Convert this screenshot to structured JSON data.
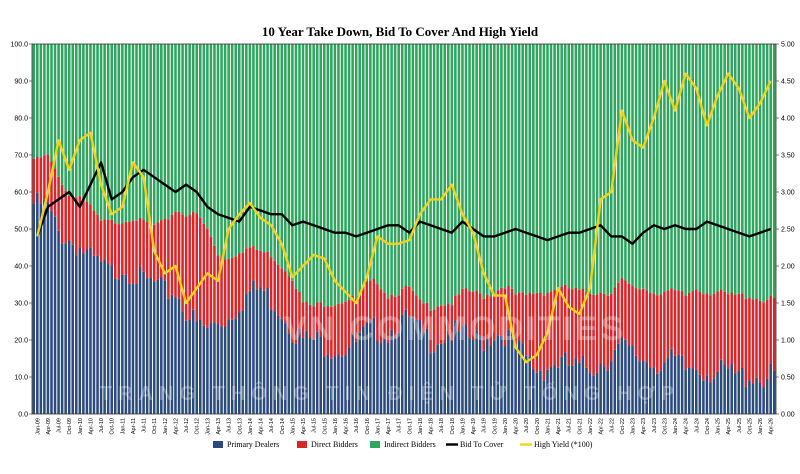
{
  "chart_data": {
    "type": "bar",
    "stacked": true,
    "title": "10 Year Take Down, Bid To Cover And High Yield",
    "ylim": [
      0,
      100
    ],
    "y2lim": [
      0,
      5
    ],
    "yticks": [
      "0.0",
      "10.0",
      "20.0",
      "30.0",
      "40.0",
      "50.0",
      "60.0",
      "70.0",
      "80.0",
      "90.0",
      "100.0"
    ],
    "y2ticks": [
      "0.00",
      "0.50",
      "1.00",
      "1.50",
      "2.00",
      "2.50",
      "3.00",
      "3.50",
      "4.00",
      "4.50",
      "5.00"
    ],
    "categories": [
      "Jan-09",
      "Apr-09",
      "Jul-09",
      "Oct-09",
      "Jan-10",
      "Apr-10",
      "Jul-10",
      "Oct-10",
      "Jan-11",
      "Apr-11",
      "Jul-11",
      "Oct-11",
      "Jan-12",
      "Apr-12",
      "Jul-12",
      "Oct-12",
      "Jan-13",
      "Apr-13",
      "Jul-13",
      "Oct-13",
      "Jan-14",
      "Apr-14",
      "Jul-14",
      "Oct-14",
      "Jan-15",
      "Apr-15",
      "Jul-15",
      "Oct-15",
      "Jan-16",
      "Apr-16",
      "Jul-16",
      "Oct-16",
      "Jan-17",
      "Apr-17",
      "Jul-17",
      "Oct-17",
      "Jan-18",
      "Apr-18",
      "Jul-18",
      "Oct-18",
      "Jan-19",
      "Apr-19",
      "Jul-19",
      "Oct-19",
      "Jan-20",
      "Apr-20",
      "Jul-20",
      "Oct-20",
      "Jan-21",
      "Apr-21",
      "Jul-21",
      "Oct-21",
      "Jan-22",
      "Apr-22",
      "Jul-22",
      "Oct-22",
      "Jan-23",
      "Apr-23",
      "Jul-23",
      "Oct-23",
      "Jan-24",
      "Apr-24",
      "Jul-24",
      "Oct-24",
      "Jan-25",
      "Apr-25",
      "Jul-25",
      "Oct-25",
      "Jan-26",
      "Apr-26"
    ],
    "bars_per_category": 3,
    "series": [
      {
        "name": "Primary Dealers",
        "kind": "bar",
        "axis": "left",
        "color": "#2b4b7c",
        "values": [
          57,
          56,
          49,
          47,
          45,
          42,
          40,
          38,
          40,
          38,
          36,
          35,
          33,
          33,
          28,
          24,
          23,
          25,
          26,
          30,
          33,
          34,
          31,
          28,
          23,
          20,
          20,
          19,
          18,
          18,
          19,
          22,
          23,
          22,
          25,
          25,
          22,
          20,
          21,
          22,
          21,
          20,
          20,
          22,
          22,
          18,
          15,
          12,
          13,
          14,
          13,
          12,
          13,
          14,
          16,
          18,
          16,
          15,
          14,
          14,
          14,
          12,
          13,
          12,
          11,
          11,
          10,
          11,
          10,
          10
        ]
      },
      {
        "name": "Direct Bidders",
        "kind": "bar",
        "axis": "left",
        "color": "#d9262b",
        "values": [
          12,
          14,
          15,
          12,
          14,
          14,
          12,
          14,
          12,
          15,
          16,
          16,
          19,
          22,
          26,
          30,
          27,
          18,
          16,
          14,
          12,
          10,
          12,
          12,
          14,
          10,
          9,
          11,
          12,
          13,
          12,
          13,
          13,
          10,
          8,
          9,
          8,
          9,
          9,
          8,
          12,
          13,
          12,
          11,
          13,
          14,
          17,
          21,
          20,
          20,
          21,
          21,
          20,
          19,
          17,
          18,
          18,
          19,
          19,
          19,
          19,
          20,
          21,
          21,
          22,
          21,
          22,
          21,
          21,
          21
        ]
      },
      {
        "name": "Indirect Bidders",
        "kind": "bar",
        "axis": "left",
        "color": "#2fa55f",
        "values": [
          31,
          30,
          36,
          41,
          41,
          44,
          48,
          48,
          48,
          47,
          48,
          49,
          48,
          45,
          46,
          46,
          50,
          57,
          58,
          56,
          55,
          56,
          57,
          60,
          63,
          70,
          71,
          70,
          70,
          69,
          69,
          65,
          64,
          68,
          67,
          66,
          70,
          71,
          70,
          70,
          67,
          67,
          68,
          67,
          65,
          68,
          68,
          67,
          67,
          66,
          66,
          67,
          67,
          67,
          67,
          64,
          66,
          66,
          67,
          67,
          67,
          68,
          66,
          67,
          67,
          68,
          68,
          68,
          69,
          69
        ]
      },
      {
        "name": "Bid To Cover",
        "kind": "line",
        "axis": "right",
        "color": "#000000",
        "values": [
          2.4,
          2.8,
          2.9,
          3.0,
          2.8,
          3.1,
          3.4,
          2.9,
          3.0,
          3.2,
          3.3,
          3.2,
          3.1,
          3.0,
          3.1,
          3.0,
          2.8,
          2.7,
          2.65,
          2.6,
          2.8,
          2.75,
          2.7,
          2.7,
          2.55,
          2.6,
          2.55,
          2.5,
          2.45,
          2.45,
          2.4,
          2.45,
          2.5,
          2.55,
          2.55,
          2.45,
          2.6,
          2.55,
          2.5,
          2.45,
          2.6,
          2.5,
          2.4,
          2.4,
          2.45,
          2.5,
          2.45,
          2.4,
          2.35,
          2.4,
          2.45,
          2.45,
          2.5,
          2.55,
          2.4,
          2.4,
          2.3,
          2.45,
          2.55,
          2.5,
          2.55,
          2.5,
          2.5,
          2.6,
          2.55,
          2.5,
          2.45,
          2.4,
          2.45,
          2.5
        ]
      },
      {
        "name": "High Yield (*100)",
        "kind": "line",
        "axis": "right",
        "color": "#f2d21a",
        "values": [
          2.4,
          3.0,
          3.7,
          3.3,
          3.7,
          3.8,
          3.1,
          2.7,
          2.8,
          3.4,
          3.2,
          2.2,
          1.9,
          2.0,
          1.5,
          1.7,
          1.9,
          1.8,
          2.5,
          2.7,
          2.85,
          2.65,
          2.55,
          2.3,
          1.85,
          2.0,
          2.15,
          2.1,
          1.8,
          1.65,
          1.5,
          1.85,
          2.4,
          2.3,
          2.3,
          2.35,
          2.7,
          2.9,
          2.9,
          3.1,
          2.7,
          2.45,
          1.9,
          1.6,
          1.6,
          0.9,
          0.7,
          0.8,
          1.1,
          1.7,
          1.45,
          1.35,
          1.7,
          2.9,
          3.0,
          4.1,
          3.7,
          3.6,
          4.0,
          4.5,
          4.1,
          4.6,
          4.4,
          3.9,
          4.3,
          4.6,
          4.4,
          4.0,
          4.2,
          4.5
        ]
      }
    ],
    "legend_position": "bottom-center",
    "grid": false
  },
  "watermark": {
    "line1": "VN COMMODITIES",
    "line2": "TRANG THÔNG TIN ĐIỆN TỬ TỔNG HỢP"
  }
}
